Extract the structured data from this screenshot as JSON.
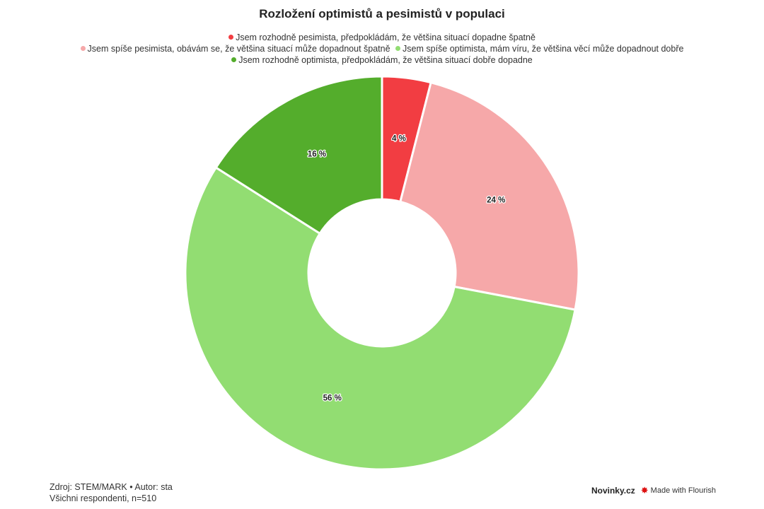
{
  "chart_data": {
    "type": "pie",
    "donut": true,
    "title": "Rozložení optimistů a pesimistů v populaci",
    "categories": [
      "Jsem rozhodně pesimista, předpokládám, že většina situací dopadne špatně",
      "Jsem spíše pesimista, obávám se, že většina situací může dopadnout špatně",
      "Jsem spíše optimista, mám víru, že většina věcí může dopadnout dobře",
      "Jsem rozhodně optimista, předpokládám, že většina situací dobře dopadne"
    ],
    "values": [
      4,
      24,
      56,
      16
    ],
    "labels": [
      "4 %",
      "24 %",
      "56 %",
      "16 %"
    ],
    "colors": [
      "#f23d42",
      "#f6a8a9",
      "#92dd72",
      "#54ad2c"
    ],
    "legend_position": "top"
  },
  "footer": {
    "source": "Zdroj: STEM/MARK • Autor: sta",
    "sample": "Všichni respondenti, n=510",
    "brand": "Novinky.cz",
    "made_with": "Made with Flourish"
  }
}
